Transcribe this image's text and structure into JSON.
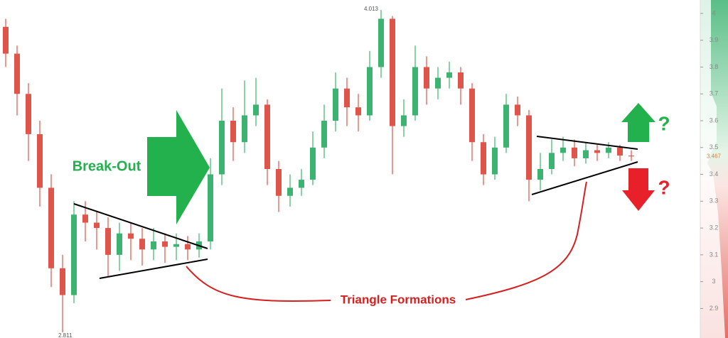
{
  "chart_data": {
    "type": "candlestick",
    "series": [
      {
        "name": "Price",
        "up_color": "#3cb371",
        "down_color": "#e0554b",
        "open": [
          3.95,
          3.85,
          3.7,
          3.55,
          3.35,
          3.05,
          2.95,
          3.25,
          3.22,
          3.2,
          3.1,
          3.18,
          3.16,
          3.12,
          3.15,
          3.13,
          3.14,
          3.12,
          3.15,
          3.4,
          3.6,
          3.52,
          3.62,
          3.66,
          3.42,
          3.32,
          3.35,
          3.38,
          3.5,
          3.6,
          3.72,
          3.65,
          3.62,
          3.8,
          3.98,
          3.58,
          3.62,
          3.8,
          3.72,
          3.76,
          3.78,
          3.72,
          3.52,
          3.4,
          3.5,
          3.66,
          3.62,
          3.38,
          3.42,
          3.48,
          3.5,
          3.46,
          3.49,
          3.48,
          3.5,
          3.47
        ],
        "high": [
          3.98,
          3.88,
          3.74,
          3.6,
          3.4,
          3.1,
          3.3,
          3.3,
          3.26,
          3.24,
          3.22,
          3.22,
          3.2,
          3.2,
          3.18,
          3.18,
          3.17,
          3.18,
          3.46,
          3.72,
          3.65,
          3.75,
          3.76,
          3.68,
          3.45,
          3.4,
          3.42,
          3.56,
          3.66,
          3.78,
          3.76,
          3.7,
          3.86,
          4.013,
          3.99,
          3.68,
          3.88,
          3.84,
          3.8,
          3.82,
          3.8,
          3.74,
          3.55,
          3.54,
          3.7,
          3.69,
          3.64,
          3.48,
          3.53,
          3.54,
          3.53,
          3.52,
          3.51,
          3.52,
          3.51,
          3.49
        ],
        "low": [
          3.8,
          3.62,
          3.45,
          3.28,
          2.98,
          2.811,
          2.92,
          3.15,
          3.12,
          3.02,
          3.04,
          3.08,
          3.06,
          3.08,
          3.07,
          3.08,
          3.08,
          3.09,
          3.12,
          3.36,
          3.45,
          3.48,
          3.58,
          3.36,
          3.26,
          3.28,
          3.32,
          3.36,
          3.46,
          3.56,
          3.58,
          3.56,
          3.6,
          3.76,
          3.4,
          3.54,
          3.6,
          3.66,
          3.68,
          3.72,
          3.66,
          3.45,
          3.36,
          3.38,
          3.48,
          3.58,
          3.3,
          3.34,
          3.4,
          3.45,
          3.43,
          3.44,
          3.45,
          3.46,
          3.45,
          3.45
        ],
        "close": [
          3.85,
          3.7,
          3.55,
          3.35,
          3.05,
          2.95,
          3.25,
          3.22,
          3.2,
          3.1,
          3.18,
          3.16,
          3.12,
          3.15,
          3.13,
          3.14,
          3.12,
          3.15,
          3.4,
          3.6,
          3.52,
          3.62,
          3.66,
          3.42,
          3.32,
          3.35,
          3.38,
          3.5,
          3.6,
          3.72,
          3.65,
          3.62,
          3.8,
          3.98,
          3.58,
          3.62,
          3.8,
          3.72,
          3.76,
          3.78,
          3.72,
          3.52,
          3.4,
          3.5,
          3.66,
          3.62,
          3.38,
          3.42,
          3.48,
          3.5,
          3.46,
          3.49,
          3.48,
          3.5,
          3.47,
          3.467
        ]
      }
    ],
    "ylim": [
      2.79,
      4.05
    ],
    "yticks": [
      2.9,
      3,
      3.1,
      3.2,
      3.3,
      3.4,
      3.5,
      3.6,
      3.7,
      3.8,
      3.9,
      4
    ],
    "price_labels": [
      {
        "value": 4.013,
        "label": "4.013"
      },
      {
        "value": 2.811,
        "label": "2.811"
      },
      {
        "value": 3.467,
        "label": "3.467"
      }
    ],
    "annotations": [
      "Break-Out",
      "Triangle Formations",
      "?",
      "?"
    ]
  }
}
